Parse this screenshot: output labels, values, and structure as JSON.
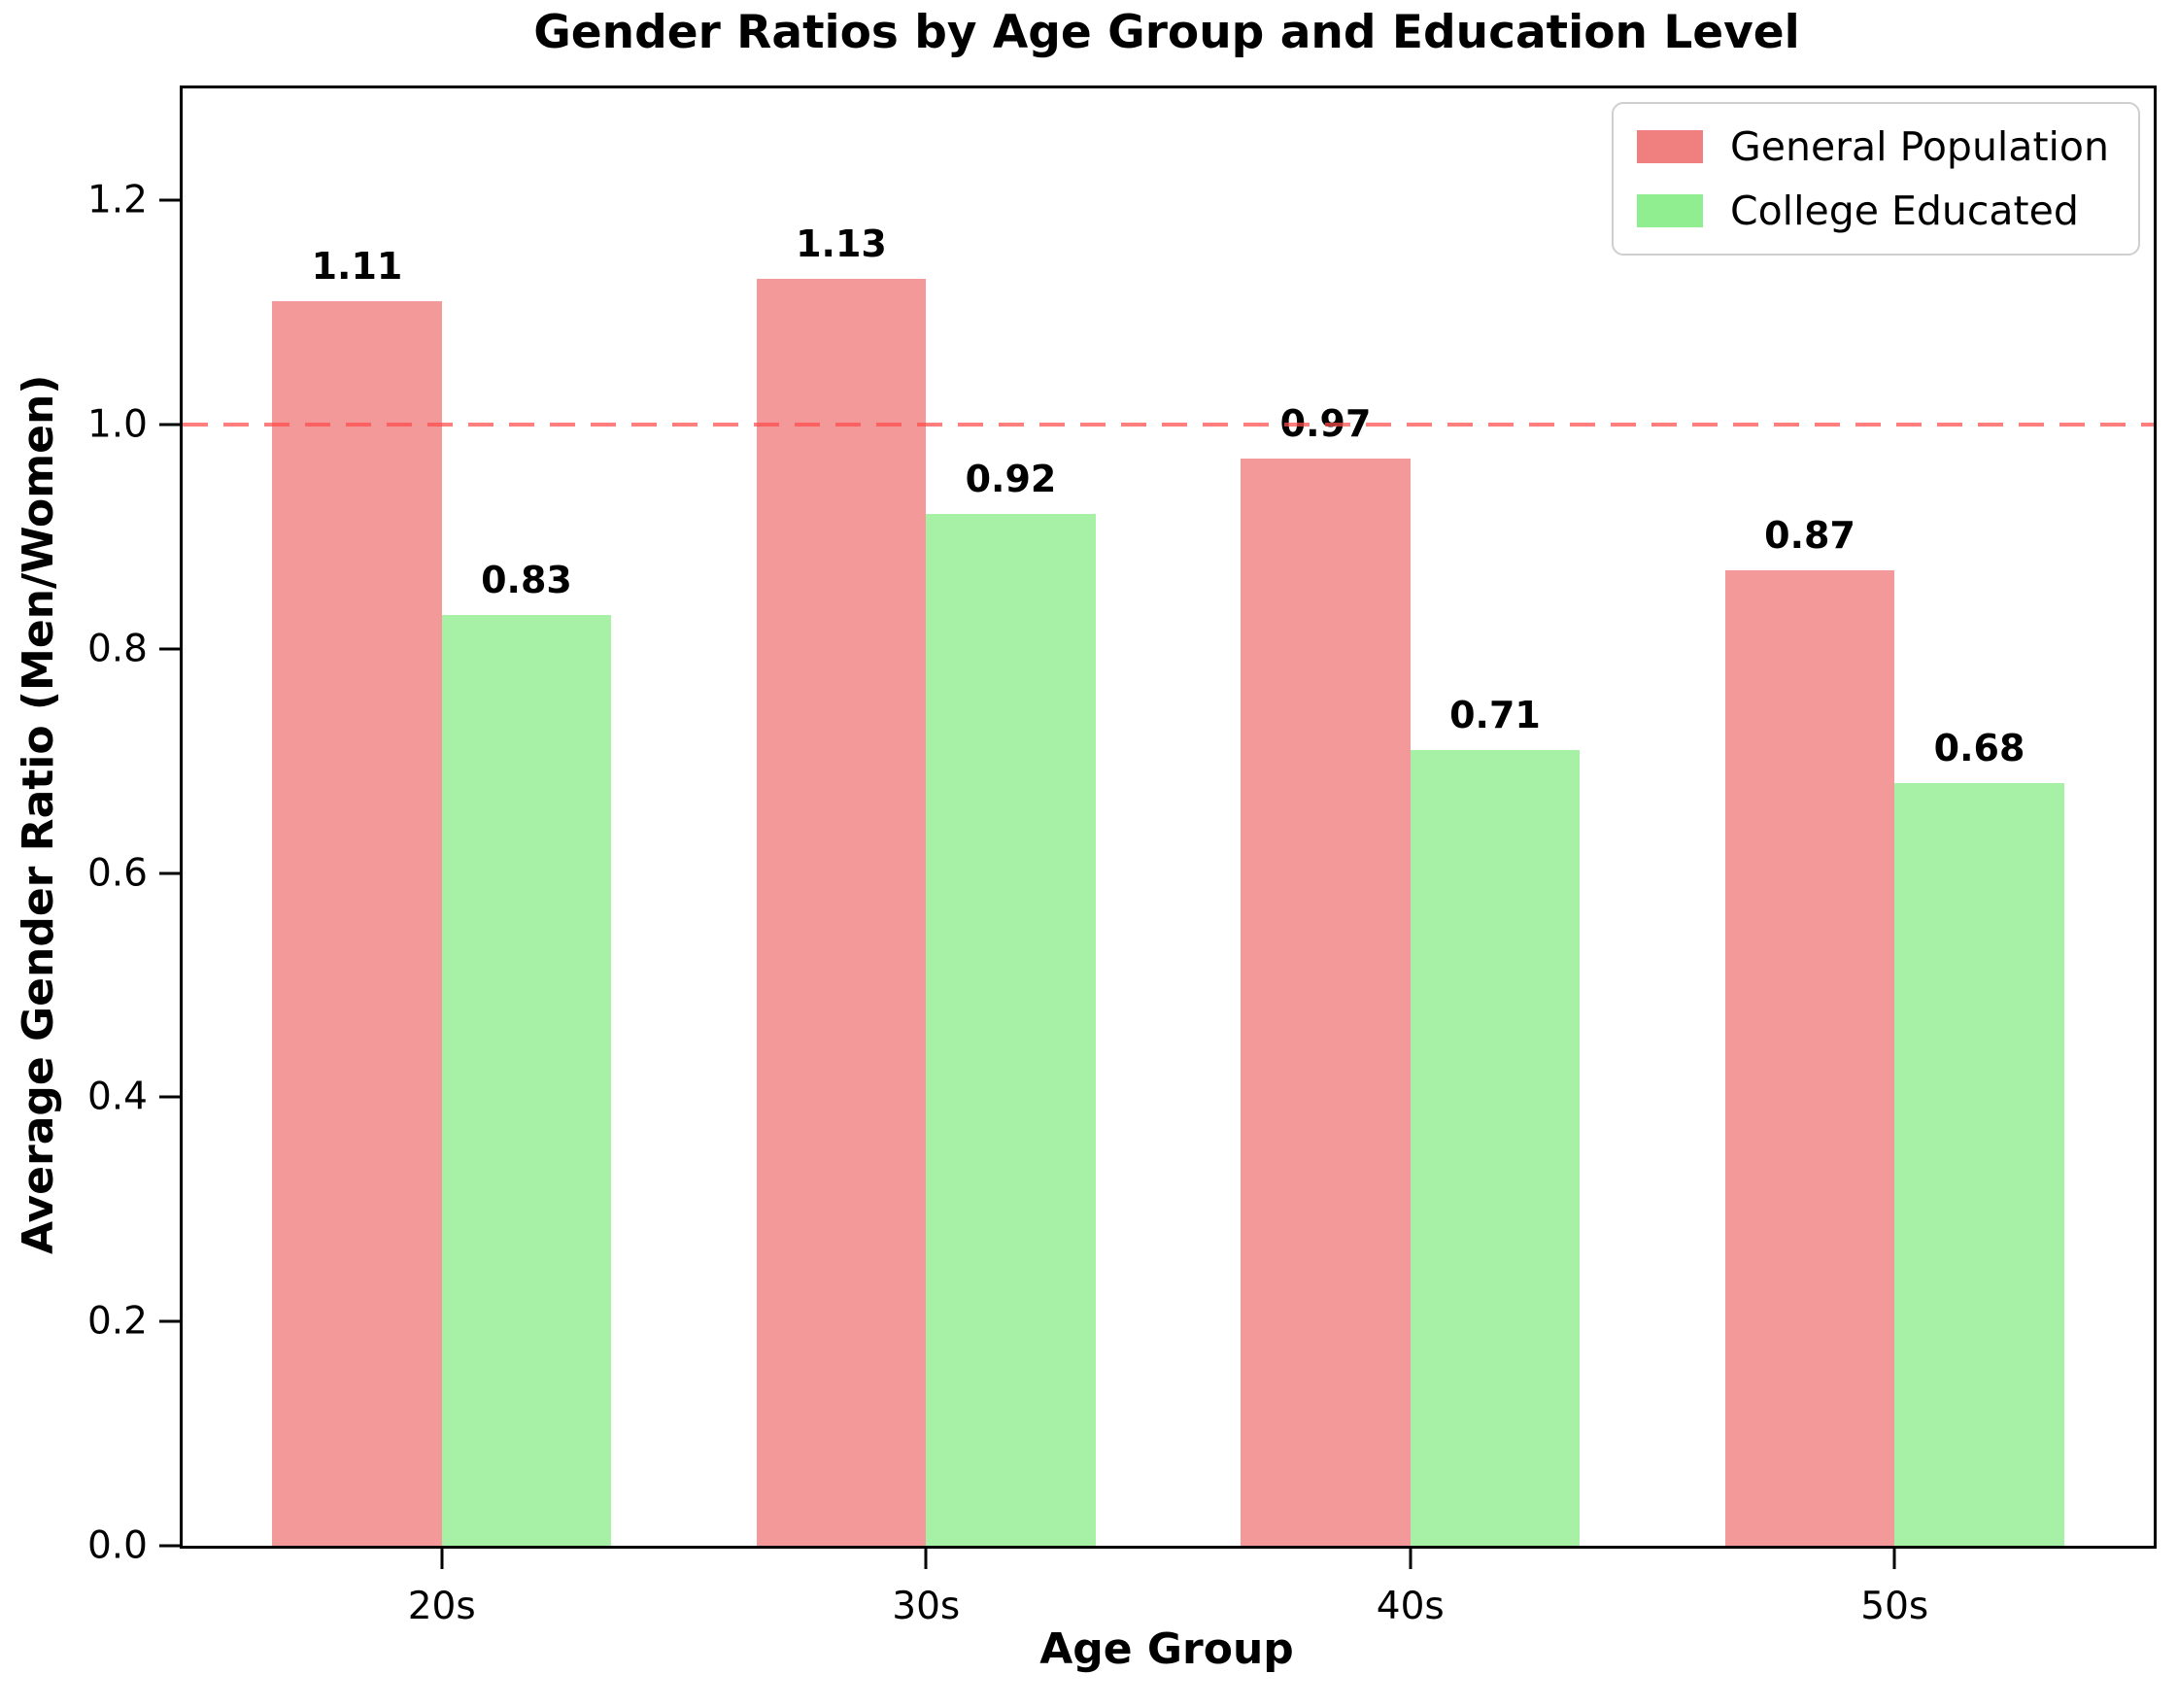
{
  "chart_data": {
    "type": "bar",
    "title": "Gender Ratios by Age Group and Education Level",
    "xlabel": "Age Group",
    "ylabel": "Average Gender Ratio (Men/Women)",
    "categories": [
      "20s",
      "30s",
      "40s",
      "50s"
    ],
    "series": [
      {
        "name": "General Population",
        "color": "#f08080",
        "fill": "#f3999a",
        "values": [
          1.11,
          1.13,
          0.97,
          0.87
        ]
      },
      {
        "name": "College Educated",
        "color": "#90ee90",
        "fill": "#a6f1a6",
        "values": [
          0.83,
          0.92,
          0.71,
          0.68
        ]
      }
    ],
    "value_labels": [
      "1.11",
      "1.13",
      "0.97",
      "0.87",
      "0.83",
      "0.92",
      "0.71",
      "0.68"
    ],
    "ylim": [
      0,
      1.3
    ],
    "yticks": [
      0.0,
      0.2,
      0.4,
      0.6,
      0.8,
      1.0,
      1.2
    ],
    "reference_line": {
      "y": 1.0,
      "color": "#ff4d4d",
      "opacity": 0.72,
      "style": "dashed"
    },
    "legend_position": "upper right",
    "grid": false,
    "bar_width_data_units": 0.35,
    "xlim": [
      -0.535,
      3.535
    ]
  }
}
